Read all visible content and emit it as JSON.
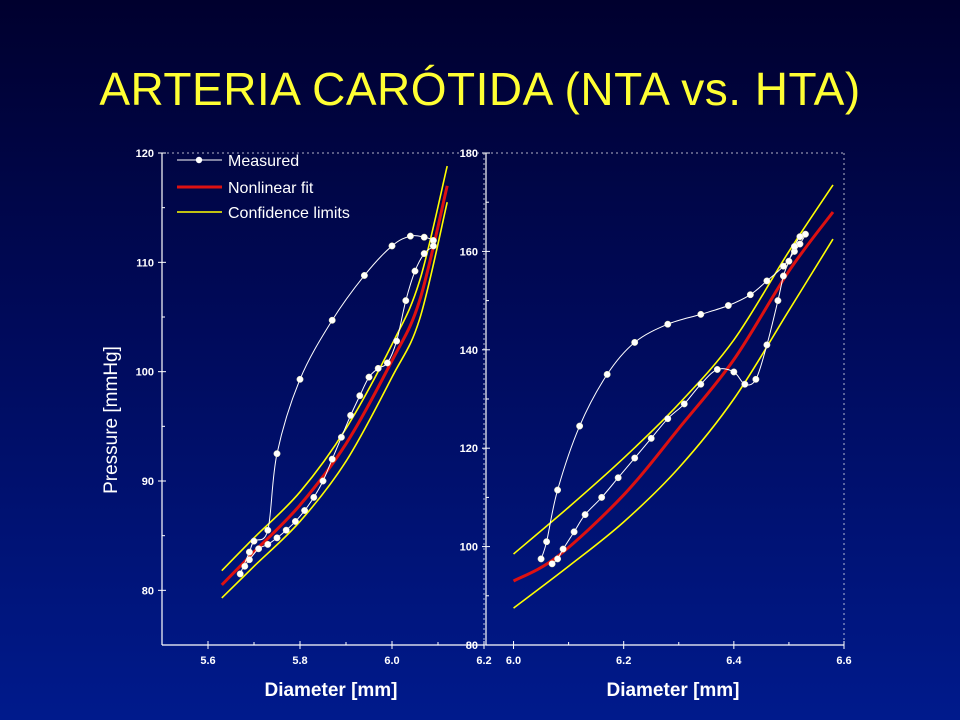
{
  "slide": {
    "title": "ARTERIA CARÓTIDA (NTA vs. HTA)"
  },
  "colors": {
    "measured": "#ffffff",
    "fit": "#dd1111",
    "confidence": "#ffff00",
    "text": "#ffffff",
    "title": "#ffff33"
  },
  "legend": {
    "measured": "Measured",
    "fit": "Nonlinear fit",
    "confidence": "Confidence limits"
  },
  "chart_data": [
    {
      "type": "line",
      "title": "",
      "xlabel": "Diameter [mm]",
      "ylabel": "Pressure [mmHg]",
      "xlim": [
        5.5,
        6.2
      ],
      "ylim": [
        75,
        120
      ],
      "xticks": [
        5.6,
        5.8,
        6.0,
        6.2
      ],
      "yticks": [
        80,
        90,
        100,
        110,
        120
      ],
      "series": [
        {
          "name": "Measured",
          "kind": "markers-line",
          "points": [
            [
              5.67,
              81.5
            ],
            [
              5.69,
              83.5
            ],
            [
              5.7,
              84.5
            ],
            [
              5.73,
              85.5
            ],
            [
              5.75,
              92.5
            ],
            [
              5.8,
              99.3
            ],
            [
              5.87,
              104.7
            ],
            [
              5.94,
              108.8
            ],
            [
              6.0,
              111.5
            ],
            [
              6.04,
              112.4
            ],
            [
              6.07,
              112.3
            ],
            [
              6.09,
              112.0
            ],
            [
              6.09,
              111.5
            ],
            [
              6.07,
              110.8
            ],
            [
              6.05,
              109.2
            ],
            [
              6.03,
              106.5
            ],
            [
              6.01,
              102.8
            ],
            [
              5.99,
              100.8
            ],
            [
              5.97,
              100.3
            ],
            [
              5.95,
              99.5
            ],
            [
              5.93,
              97.8
            ],
            [
              5.91,
              96.0
            ],
            [
              5.89,
              94.0
            ],
            [
              5.87,
              92.0
            ],
            [
              5.85,
              90.0
            ],
            [
              5.83,
              88.5
            ],
            [
              5.81,
              87.3
            ],
            [
              5.79,
              86.3
            ],
            [
              5.77,
              85.5
            ],
            [
              5.75,
              84.8
            ],
            [
              5.73,
              84.2
            ],
            [
              5.71,
              83.8
            ],
            [
              5.69,
              82.8
            ],
            [
              5.68,
              82.2
            ]
          ]
        },
        {
          "name": "Nonlinear fit",
          "kind": "line",
          "points": [
            [
              5.63,
              80.5
            ],
            [
              5.7,
              83.5
            ],
            [
              5.8,
              87.8
            ],
            [
              5.9,
              93.4
            ],
            [
              6.0,
              101.0
            ],
            [
              6.06,
              106.5
            ],
            [
              6.12,
              117.0
            ]
          ]
        },
        {
          "name": "Confidence limits",
          "kind": "line",
          "points": [
            [
              5.63,
              81.8
            ],
            [
              5.7,
              84.8
            ],
            [
              5.8,
              89.0
            ],
            [
              5.9,
              94.8
            ],
            [
              6.0,
              102.5
            ],
            [
              6.06,
              108.3
            ],
            [
              6.12,
              118.8
            ]
          ]
        },
        {
          "kind": "line",
          "legend": false,
          "points": [
            [
              5.63,
              79.3
            ],
            [
              5.7,
              82.2
            ],
            [
              5.8,
              86.3
            ],
            [
              5.9,
              91.8
            ],
            [
              6.0,
              99.5
            ],
            [
              6.06,
              104.8
            ],
            [
              6.12,
              115.5
            ]
          ]
        }
      ]
    },
    {
      "type": "line",
      "title": "",
      "xlabel": "Diameter [mm]",
      "ylabel": "",
      "xlim": [
        5.95,
        6.6
      ],
      "ylim": [
        80,
        180
      ],
      "xticks": [
        6.0,
        6.2,
        6.4,
        6.6
      ],
      "yticks": [
        80,
        100,
        120,
        140,
        160,
        180
      ],
      "series": [
        {
          "name": "Measured",
          "kind": "markers-line",
          "points": [
            [
              6.05,
              97.5
            ],
            [
              6.06,
              101
            ],
            [
              6.08,
              111.5
            ],
            [
              6.12,
              124.5
            ],
            [
              6.17,
              135.0
            ],
            [
              6.22,
              141.5
            ],
            [
              6.28,
              145.2
            ],
            [
              6.34,
              147.2
            ],
            [
              6.39,
              149.0
            ],
            [
              6.43,
              151.2
            ],
            [
              6.46,
              154.0
            ],
            [
              6.49,
              157.0
            ],
            [
              6.51,
              160.0
            ],
            [
              6.52,
              161.5
            ],
            [
              6.53,
              163.5
            ],
            [
              6.52,
              163.0
            ],
            [
              6.51,
              161.0
            ],
            [
              6.5,
              158.0
            ],
            [
              6.49,
              155.0
            ],
            [
              6.48,
              150.0
            ],
            [
              6.46,
              141.0
            ],
            [
              6.44,
              134.0
            ],
            [
              6.42,
              133.0
            ],
            [
              6.4,
              135.5
            ],
            [
              6.37,
              136.0
            ],
            [
              6.34,
              133.0
            ],
            [
              6.31,
              129.0
            ],
            [
              6.28,
              126.0
            ],
            [
              6.25,
              122.0
            ],
            [
              6.22,
              118.0
            ],
            [
              6.19,
              114.0
            ],
            [
              6.16,
              110.0
            ],
            [
              6.13,
              106.5
            ],
            [
              6.11,
              103.0
            ],
            [
              6.09,
              99.5
            ],
            [
              6.08,
              97.5
            ],
            [
              6.07,
              96.5
            ]
          ]
        },
        {
          "name": "Nonlinear fit",
          "kind": "line",
          "points": [
            [
              6.0,
              93
            ],
            [
              6.08,
              98
            ],
            [
              6.2,
              110.5
            ],
            [
              6.3,
              124
            ],
            [
              6.4,
              138
            ],
            [
              6.5,
              156
            ],
            [
              6.58,
              168
            ]
          ]
        },
        {
          "name": "Confidence limits",
          "kind": "line",
          "points": [
            [
              6.0,
              98.5
            ],
            [
              6.1,
              108
            ],
            [
              6.2,
              118
            ],
            [
              6.3,
              129
            ],
            [
              6.4,
              142
            ],
            [
              6.5,
              160
            ],
            [
              6.58,
              173.5
            ]
          ]
        },
        {
          "kind": "line",
          "legend": false,
          "points": [
            [
              6.0,
              87.5
            ],
            [
              6.1,
              96
            ],
            [
              6.2,
              105
            ],
            [
              6.3,
              116
            ],
            [
              6.4,
              130
            ],
            [
              6.5,
              148
            ],
            [
              6.58,
              162.5
            ]
          ]
        }
      ]
    }
  ]
}
